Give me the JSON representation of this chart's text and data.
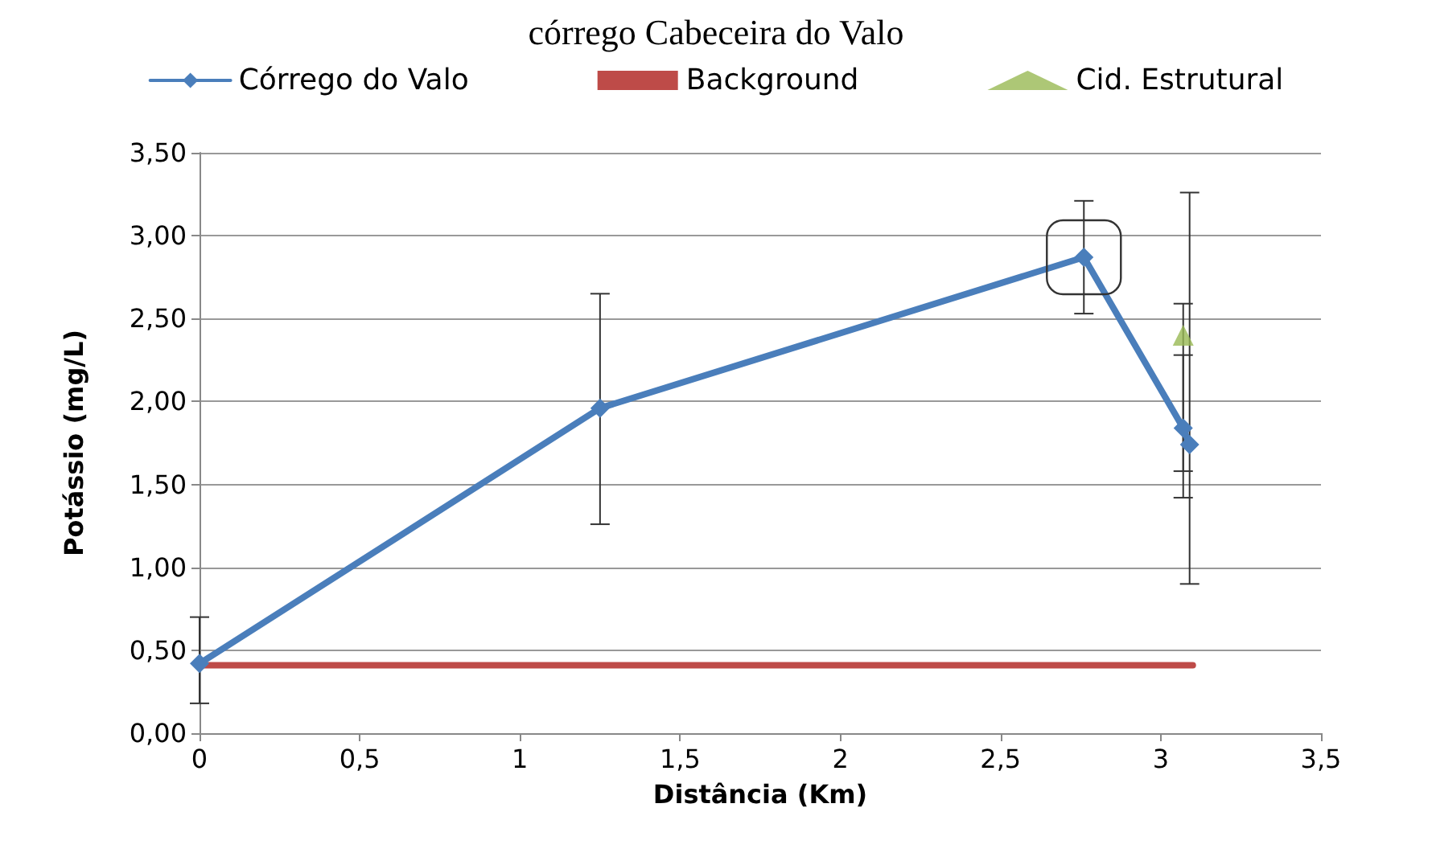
{
  "chart_data": {
    "type": "line",
    "title": "córrego Cabeceira do Valo",
    "xlabel": "Distância (Km)",
    "ylabel": "Potássio (mg/L)",
    "series": [
      {
        "name": "Córrego do Valo",
        "color": "#4a7ebb",
        "marker": "diamond",
        "x": [
          0,
          1.25,
          2.76,
          3.07,
          3.09
        ],
        "values": [
          0.42,
          1.96,
          2.87,
          1.84,
          1.74
        ],
        "errors": [
          [
            0.18,
            0.7
          ],
          [
            1.26,
            2.65
          ],
          [
            2.53,
            3.21
          ],
          [
            1.42,
            2.28
          ],
          [
            0.9,
            3.26
          ]
        ]
      },
      {
        "name": "Background",
        "color": "#be4b48",
        "marker": "none",
        "x": [
          0,
          3.1
        ],
        "values": [
          0.41,
          0.41
        ]
      },
      {
        "name": "Cid. Estrutural",
        "color": "#98b954",
        "marker": "triangle",
        "type": "scatter",
        "x": [
          3.07
        ],
        "values": [
          2.4
        ],
        "errors": [
          [
            1.58,
            2.59
          ]
        ]
      }
    ],
    "xlim": [
      0,
      3.5
    ],
    "xticks": [
      {
        "value": 0,
        "label": "0"
      },
      {
        "value": 0.5,
        "label": "0,5"
      },
      {
        "value": 1,
        "label": "1"
      },
      {
        "value": 1.5,
        "label": "1,5"
      },
      {
        "value": 2,
        "label": "2"
      },
      {
        "value": 2.5,
        "label": "2,5"
      },
      {
        "value": 3,
        "label": "3"
      },
      {
        "value": 3.5,
        "label": "3,5"
      }
    ],
    "ylim": [
      0,
      3.5
    ],
    "yticks": [
      {
        "value": 0,
        "label": "0,00"
      },
      {
        "value": 0.5,
        "label": "0,50"
      },
      {
        "value": 1,
        "label": "1,00"
      },
      {
        "value": 1.5,
        "label": "1,50"
      },
      {
        "value": 2,
        "label": "2,00"
      },
      {
        "value": 2.5,
        "label": "2,50"
      },
      {
        "value": 3,
        "label": "3,00"
      },
      {
        "value": 3.5,
        "label": "3,50"
      }
    ],
    "grid": "y",
    "legend": "top"
  }
}
